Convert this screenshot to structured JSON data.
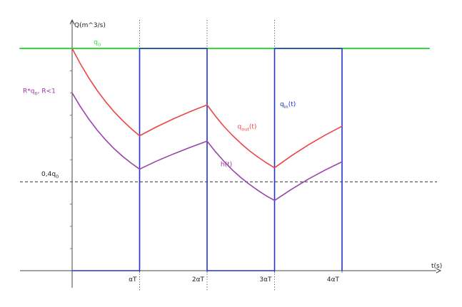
{
  "chart_data": {
    "type": "line",
    "title": "",
    "ylabel": "Q(m^3/s)",
    "xlabel": "t(s)",
    "x_ticks": [
      {
        "x": 1,
        "label": "αT"
      },
      {
        "x": 2,
        "label": "2αT"
      },
      {
        "x": 3,
        "label": "3αT"
      },
      {
        "x": 4,
        "label": "4αT"
      }
    ],
    "xlim": [
      -0.78,
      5.3
    ],
    "ylim": [
      -0.05,
      1.12
    ],
    "hline_label": {
      "base": "0,4q",
      "sub": "0"
    },
    "series": [
      {
        "key": "q0",
        "name": {
          "base": "q",
          "sub": "0",
          "after": ""
        },
        "color": "#33dd33",
        "x": [
          -0.78,
          5.3
        ],
        "y": [
          1.0,
          1.0
        ]
      },
      {
        "key": "qin",
        "name": {
          "base": "q",
          "sub": "in",
          "after": "(t)"
        },
        "color": "#2233cc",
        "x": [
          0,
          1,
          1,
          2,
          2,
          3,
          3,
          4,
          4
        ],
        "y": [
          0,
          0,
          1,
          1,
          0,
          0,
          1,
          1,
          0
        ]
      },
      {
        "key": "qout",
        "name": {
          "base": "q",
          "sub": "out",
          "after": "(t)"
        },
        "color": "#ee4444",
        "x": [
          0,
          0.125,
          0.25,
          0.375,
          0.5,
          0.625,
          0.75,
          0.875,
          1,
          1.25,
          1.5,
          1.75,
          2,
          2.125,
          2.25,
          2.375,
          2.5,
          2.625,
          2.75,
          2.875,
          3,
          3.25,
          3.5,
          3.75,
          4
        ],
        "y": [
          1.0,
          0.929,
          0.866,
          0.809,
          0.759,
          0.714,
          0.675,
          0.639,
          0.607,
          0.647,
          0.683,
          0.716,
          0.746,
          0.695,
          0.649,
          0.609,
          0.573,
          0.54,
          0.512,
          0.486,
          0.463,
          0.517,
          0.566,
          0.61,
          0.65
        ]
      },
      {
        "key": "h",
        "name": {
          "base": "h(t)",
          "sub": "",
          "after": ""
        },
        "color": "#9944aa",
        "x": [
          0,
          0.125,
          0.25,
          0.375,
          0.5,
          0.625,
          0.75,
          0.875,
          1,
          1.25,
          1.5,
          1.75,
          2,
          2.125,
          2.25,
          2.375,
          2.5,
          2.625,
          2.75,
          2.875,
          3,
          3.25,
          3.5,
          3.75,
          4
        ],
        "y": [
          0.8,
          0.737,
          0.681,
          0.631,
          0.587,
          0.548,
          0.514,
          0.484,
          0.457,
          0.493,
          0.525,
          0.555,
          0.583,
          0.535,
          0.492,
          0.453,
          0.419,
          0.389,
          0.362,
          0.337,
          0.316,
          0.366,
          0.412,
          0.453,
          0.49
        ]
      }
    ],
    "reference_lines": [
      {
        "orientation": "horizontal",
        "value": 0.4,
        "style": "dashed",
        "color": "#333333"
      },
      {
        "orientation": "vertical",
        "value": 1,
        "style": "dotted",
        "color": "#555555"
      },
      {
        "orientation": "vertical",
        "value": 2,
        "style": "dotted",
        "color": "#555555"
      },
      {
        "orientation": "vertical",
        "value": 3,
        "style": "dotted",
        "color": "#555555"
      }
    ],
    "annotations": [
      {
        "key": "q0",
        "text": {
          "base": "q",
          "sub": "0",
          "after": ""
        },
        "color": "#33dd33",
        "x": 0.32,
        "y": 1.02
      },
      {
        "key": "Rq0",
        "text": {
          "base": "R*q",
          "sub": "0",
          "after": ", R<1"
        },
        "color": "#993399",
        "x": -0.73,
        "y": 0.8
      },
      {
        "key": "qin",
        "text": {
          "base": "q",
          "sub": "in",
          "after": "(t)"
        },
        "color": "#2233cc",
        "x": 3.08,
        "y": 0.74
      },
      {
        "key": "qout",
        "text": {
          "base": "q",
          "sub": "out",
          "after": "(t)"
        },
        "color": "#ee4444",
        "x": 2.45,
        "y": 0.64
      },
      {
        "key": "h",
        "text": {
          "base": "h(t)",
          "sub": "",
          "after": ""
        },
        "color": "#993399",
        "x": 2.2,
        "y": 0.47
      }
    ]
  }
}
